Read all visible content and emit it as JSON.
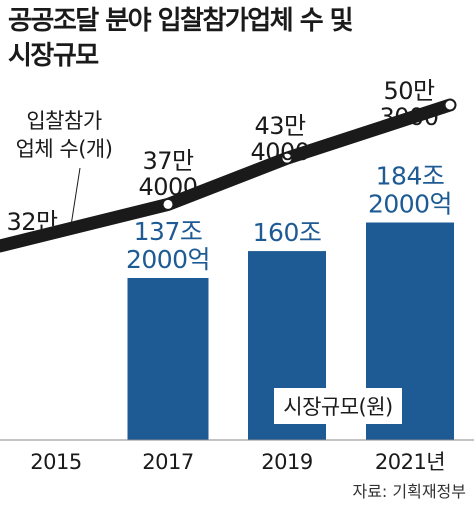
{
  "title_lines": [
    "공공조달 분야 입찰참가업체 수 및",
    "시장규모"
  ],
  "source": "자료: 기획재정부",
  "colors": {
    "bar": "#1e5b94",
    "line": "#1a1a1a",
    "value_text": "#1e5b94",
    "text": "#1a1a1a"
  },
  "chart_data": {
    "type": "bar",
    "categories": [
      "2015",
      "2017",
      "2019",
      "2021년"
    ],
    "series": [
      {
        "name": "시장규모(원)",
        "type": "bar",
        "values": [
          null,
          1372000,
          1600000,
          1842000
        ],
        "labels": [
          null,
          [
            "137조",
            "2000억"
          ],
          [
            "160조"
          ],
          [
            "184조",
            "2000억"
          ]
        ]
      },
      {
        "name": "입찰참가업체 수(개)",
        "name_lines": [
          "입찰참가",
          "업체 수(개)"
        ],
        "type": "line",
        "values": [
          320000,
          374000,
          434000,
          503000
        ],
        "labels": [
          [
            "32만"
          ],
          [
            "37만",
            "4000"
          ],
          [
            "43만",
            "4000"
          ],
          [
            "50만",
            "3000"
          ]
        ]
      }
    ]
  }
}
